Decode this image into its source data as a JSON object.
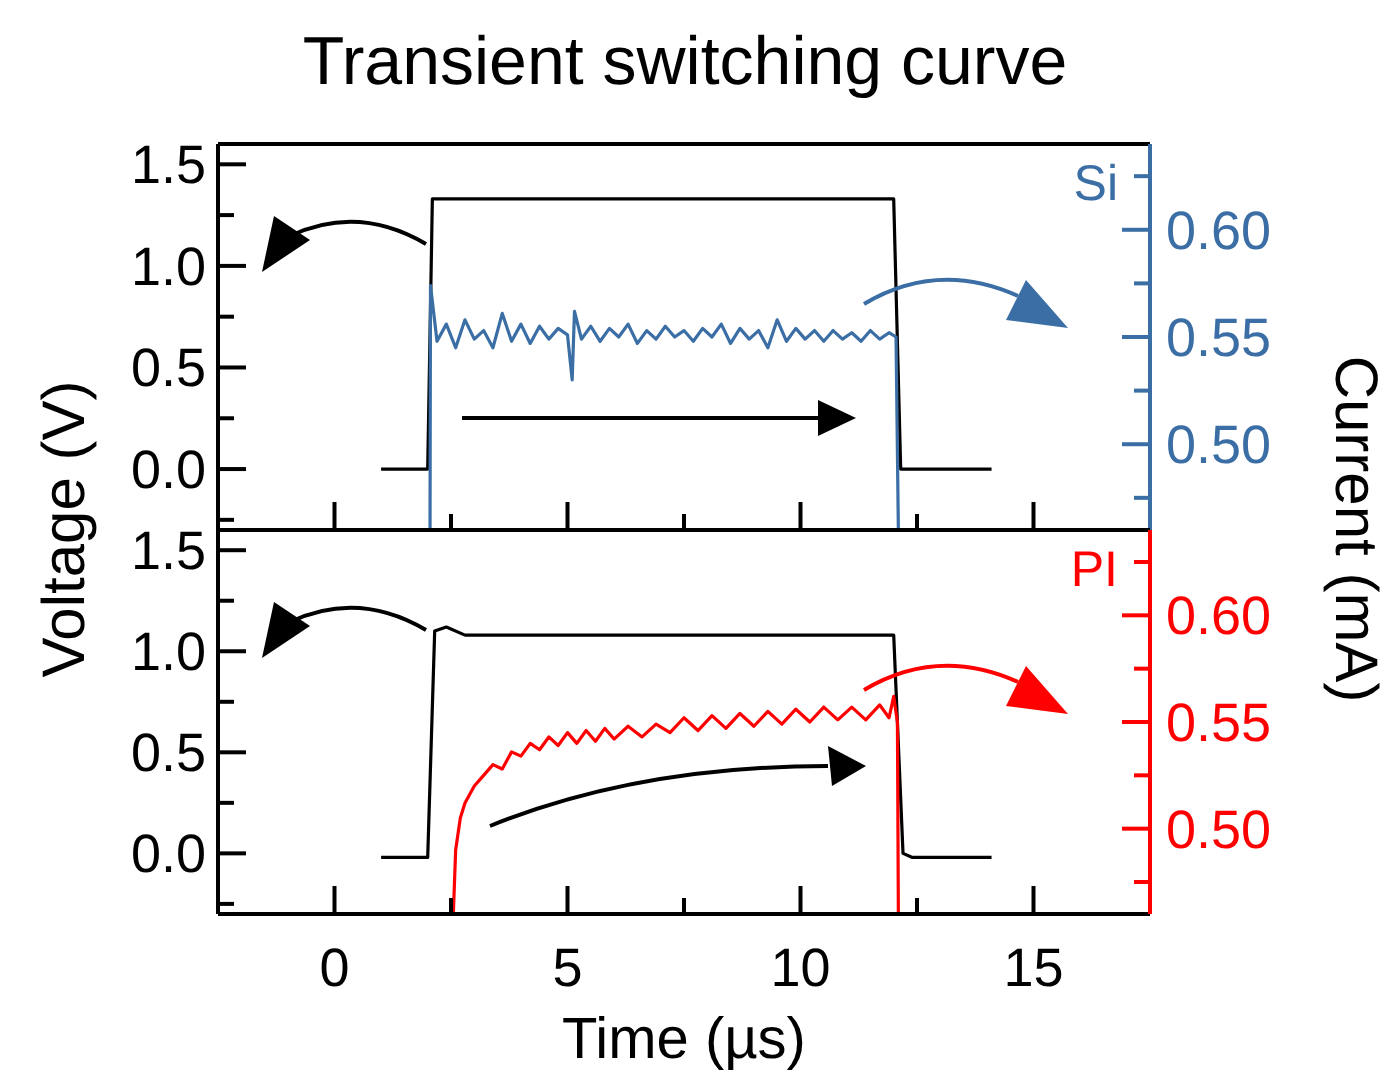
{
  "chart_data": [
    {
      "type": "line",
      "title": "Transient switching curve",
      "ylabel": "Voltage (V)",
      "y2label": "Current (mA)",
      "legend": "top right",
      "grid": false,
      "tick_labels": "y",
      "xlim": [
        -2.5,
        17.5
      ],
      "xticks": [
        {
          "value": 0,
          "label": null
        },
        {
          "value": 2.5,
          "label": null
        },
        {
          "value": 5,
          "label": null
        },
        {
          "value": 7.5,
          "label": null
        },
        {
          "value": 10,
          "label": null
        },
        {
          "value": 12.5,
          "label": null
        },
        {
          "value": 15,
          "label": null
        }
      ],
      "ylim": [
        -0.3,
        1.6
      ],
      "yticks": [
        {
          "value": -0.25,
          "label": null
        },
        {
          "value": 0,
          "label": "0.0"
        },
        {
          "value": 0.25,
          "label": null
        },
        {
          "value": 0.5,
          "label": "0.5"
        },
        {
          "value": 0.75,
          "label": null
        },
        {
          "value": 1,
          "label": "1.0"
        },
        {
          "value": 1.25,
          "label": null
        },
        {
          "value": 1.5,
          "label": "1.5"
        }
      ],
      "y2lim": [
        0.46,
        0.64
      ],
      "y2ticks": [
        {
          "value": 0.475,
          "label": null
        },
        {
          "value": 0.5,
          "label": "0.50"
        },
        {
          "value": 0.525,
          "label": null
        },
        {
          "value": 0.55,
          "label": "0.55"
        },
        {
          "value": 0.575,
          "label": null
        },
        {
          "value": 0.6,
          "label": "0.60"
        },
        {
          "value": 0.625,
          "label": null
        }
      ],
      "series": [
        {
          "color": "#000000",
          "x": [
            1.0,
            2.0,
            2.1,
            12.0,
            12.15,
            14.1
          ],
          "values": [
            0,
            0,
            1.33,
            1.33,
            0,
            0
          ]
        },
        {
          "name": "Si",
          "axis": "y2",
          "color": "#3a6ea5",
          "x": [
            2.05,
            2.06,
            2.2,
            2.4,
            2.6,
            2.8,
            3.0,
            3.2,
            3.4,
            3.6,
            3.8,
            4.0,
            4.2,
            4.4,
            4.6,
            4.8,
            5.0,
            5.1,
            5.15,
            5.3,
            5.5,
            5.7,
            5.9,
            6.1,
            6.3,
            6.5,
            6.7,
            6.9,
            7.1,
            7.3,
            7.5,
            7.7,
            7.9,
            8.1,
            8.3,
            8.5,
            8.7,
            8.9,
            9.1,
            9.3,
            9.5,
            9.7,
            9.9,
            10.1,
            10.3,
            10.5,
            10.7,
            10.9,
            11.1,
            11.3,
            11.5,
            11.7,
            11.9,
            12.05,
            12.1
          ],
          "values": [
            0.46,
            0.574,
            0.548,
            0.556,
            0.545,
            0.558,
            0.549,
            0.553,
            0.545,
            0.561,
            0.548,
            0.556,
            0.547,
            0.555,
            0.549,
            0.554,
            0.551,
            0.53,
            0.562,
            0.549,
            0.555,
            0.548,
            0.554,
            0.55,
            0.556,
            0.547,
            0.553,
            0.549,
            0.555,
            0.55,
            0.553,
            0.548,
            0.554,
            0.55,
            0.556,
            0.547,
            0.554,
            0.549,
            0.553,
            0.545,
            0.558,
            0.548,
            0.554,
            0.549,
            0.553,
            0.548,
            0.553,
            0.549,
            0.552,
            0.548,
            0.553,
            0.549,
            0.552,
            0.55,
            0.46
          ]
        }
      ]
    },
    {
      "type": "line",
      "xlabel": "Time (µs)",
      "legend": "top right",
      "grid": false,
      "xlim": [
        -2.5,
        17.5
      ],
      "xticks": [
        0,
        {
          "value": 2.5,
          "label": null
        },
        5,
        {
          "value": 7.5,
          "label": null
        },
        10,
        {
          "value": 12.5,
          "label": null
        },
        15
      ],
      "ylim": [
        -0.3,
        1.6
      ],
      "yticks": [
        {
          "value": -0.25,
          "label": null
        },
        {
          "value": 0,
          "label": "0.0"
        },
        {
          "value": 0.25,
          "label": null
        },
        0.5,
        {
          "value": 0.75,
          "label": null
        },
        {
          "value": 1,
          "label": "1.0"
        },
        {
          "value": 1.25,
          "label": null
        },
        1.5
      ],
      "y2lim": [
        0.46,
        0.64
      ],
      "y2ticks": [
        {
          "value": 0.475,
          "label": null
        },
        {
          "value": 0.5,
          "label": "0.50"
        },
        {
          "value": 0.525,
          "label": null
        },
        0.55,
        {
          "value": 0.575,
          "label": null
        },
        {
          "value": 0.6,
          "label": "0.60"
        },
        {
          "value": 0.625,
          "label": null
        }
      ],
      "series": [
        {
          "color": "#000000",
          "x": [
            1.0,
            2.0,
            2.15,
            2.4,
            2.8,
            12.0,
            12.2,
            12.4,
            14.1
          ],
          "values": [
            -0.02,
            -0.02,
            1.1,
            1.12,
            1.08,
            1.08,
            0,
            -0.02,
            -0.02
          ]
        },
        {
          "name": "PI",
          "axis": "y2",
          "color": "#ff0000",
          "x": [
            2.55,
            2.6,
            2.7,
            2.8,
            3.0,
            3.2,
            3.4,
            3.6,
            3.8,
            4.0,
            4.2,
            4.4,
            4.6,
            4.8,
            5.0,
            5.2,
            5.4,
            5.6,
            5.8,
            6.0,
            6.3,
            6.6,
            6.9,
            7.2,
            7.5,
            7.8,
            8.1,
            8.4,
            8.7,
            9.0,
            9.3,
            9.6,
            9.9,
            10.2,
            10.5,
            10.8,
            11.1,
            11.4,
            11.7,
            11.9,
            12.0,
            12.08,
            12.1
          ],
          "values": [
            0.46,
            0.49,
            0.505,
            0.512,
            0.52,
            0.525,
            0.53,
            0.528,
            0.536,
            0.534,
            0.54,
            0.537,
            0.543,
            0.539,
            0.545,
            0.54,
            0.546,
            0.541,
            0.547,
            0.542,
            0.548,
            0.543,
            0.549,
            0.545,
            0.552,
            0.546,
            0.553,
            0.547,
            0.554,
            0.548,
            0.555,
            0.549,
            0.556,
            0.55,
            0.557,
            0.551,
            0.557,
            0.551,
            0.558,
            0.552,
            0.562,
            0.55,
            0.46
          ]
        }
      ]
    }
  ]
}
